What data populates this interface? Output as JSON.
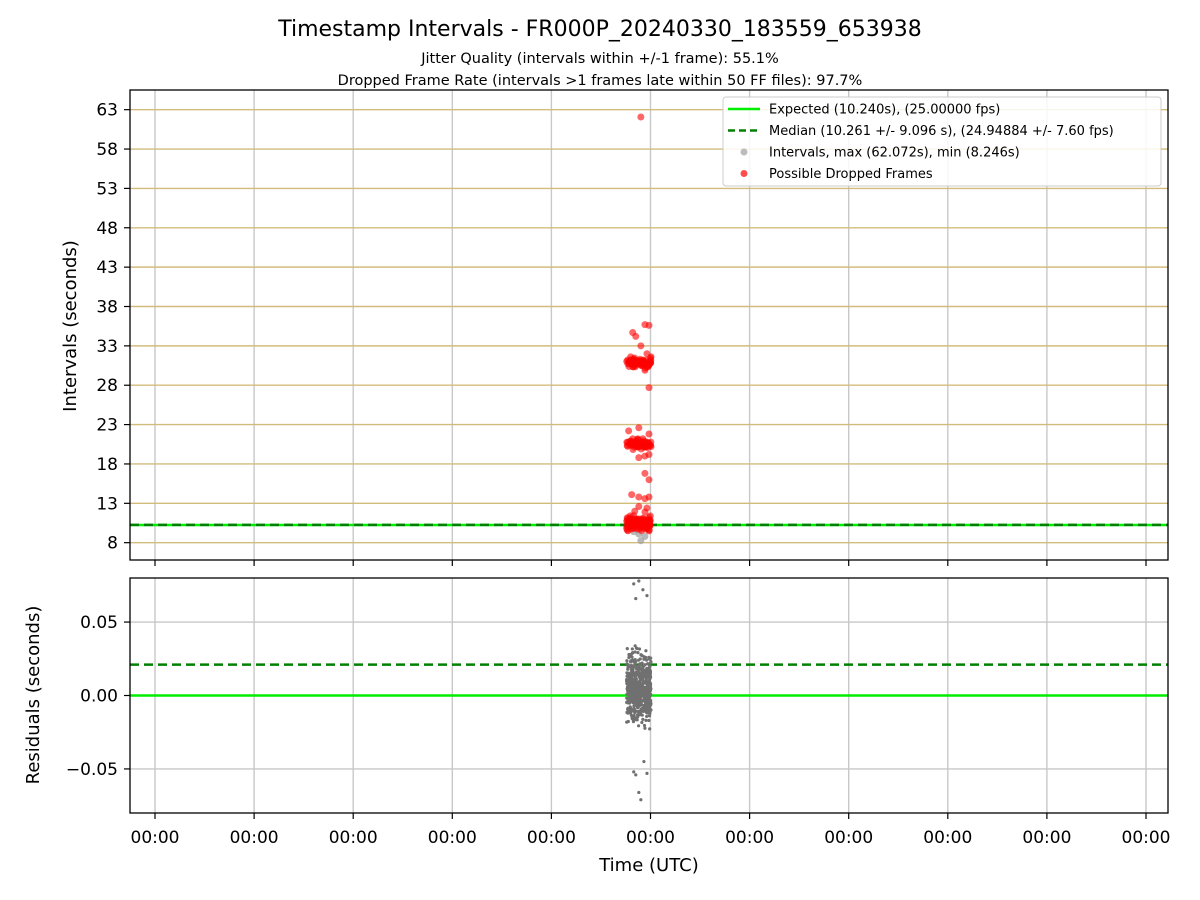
{
  "title": "Timestamp Intervals - FR000P_20240330_183559_653938",
  "subtitle_lines": [
    "Jitter Quality (intervals within +/-1 frame): 55.1%",
    "Dropped Frame Rate (intervals >1 frames late within 50 FF files): 97.7%"
  ],
  "colors": {
    "expected": "#00ee00",
    "median": "#008000",
    "interval_points": "#a0a0a0",
    "dropped_points": "#ff0000",
    "residual_points": "#707070",
    "top_hgrid": "#d2bc7c",
    "grid": "#c8c8c8"
  },
  "chart_data": [
    {
      "type": "scatter",
      "panel": "top",
      "ylabel": "Intervals (seconds)",
      "xlabel": "",
      "ylim": [
        5.8,
        65.5
      ],
      "yticks": [
        8,
        13,
        18,
        23,
        28,
        33,
        38,
        43,
        48,
        53,
        58,
        63
      ],
      "x_tick_labels": [
        "00:00",
        "00:00",
        "00:00",
        "00:00",
        "00:00",
        "00:00",
        "00:00",
        "00:00",
        "00:00",
        "00:00",
        "00:00"
      ],
      "x_tick_labels_visible": false,
      "grid": true,
      "legend_placement": "top-right",
      "legend": [
        {
          "label": "Expected (10.240s), (25.00000 fps)",
          "kind": "solid-line",
          "color_key": "expected"
        },
        {
          "label": "Median (10.261 +/- 9.096 s), (24.94884 +/- 7.60 fps)",
          "kind": "dashed-line",
          "color_key": "median"
        },
        {
          "label": "Intervals, max (62.072s), min (8.246s)",
          "kind": "dot",
          "color_key": "interval_points"
        },
        {
          "label": "Possible Dropped Frames",
          "kind": "dot",
          "color_key": "dropped_points"
        }
      ],
      "expected": 10.24,
      "median": 10.261,
      "max_interval": 62.072,
      "min_interval": 8.246,
      "x_center": 5,
      "xlim": [
        0,
        10.2
      ],
      "series": [
        {
          "name": "Intervals, max (62.072s), min (8.246s)",
          "points": [
            [
              5.0,
              9.1
            ],
            [
              5.02,
              8.25
            ],
            [
              5.06,
              8.8
            ],
            [
              4.95,
              9.4
            ],
            [
              5.08,
              9.7
            ],
            [
              4.96,
              9.9
            ]
          ]
        },
        {
          "name": "Possible Dropped Frames",
          "points": [
            [
              5.02,
              62.07
            ],
            [
              5.06,
              35.7
            ],
            [
              5.1,
              35.6
            ],
            [
              4.94,
              34.7
            ],
            [
              4.97,
              34.2
            ],
            [
              5.02,
              33.0
            ],
            [
              5.08,
              32.0
            ],
            [
              5.12,
              31.6
            ],
            [
              4.92,
              31.6
            ],
            [
              5.04,
              31.2
            ],
            [
              5.1,
              27.7
            ],
            [
              5.06,
              29.9
            ],
            [
              4.98,
              31.0
            ],
            [
              5.1,
              30.8
            ],
            [
              4.9,
              22.2
            ],
            [
              5.0,
              22.6
            ],
            [
              5.1,
              21.8
            ],
            [
              4.94,
              21.2
            ],
            [
              5.04,
              21.2
            ],
            [
              5.06,
              19.0
            ],
            [
              5.1,
              19.2
            ],
            [
              5.0,
              18.8
            ],
            [
              5.06,
              16.8
            ],
            [
              5.1,
              16.0
            ],
            [
              4.93,
              14.1
            ],
            [
              5.0,
              13.8
            ],
            [
              5.06,
              13.6
            ],
            [
              5.1,
              13.8
            ],
            [
              5.0,
              12.6
            ],
            [
              5.08,
              12.4
            ],
            [
              4.96,
              12.0
            ],
            [
              5.06,
              11.9
            ]
          ],
          "clusters": [
            {
              "center": 30.8,
              "spread": 0.4,
              "x_from": 4.88,
              "x_to": 5.12,
              "count": 70
            },
            {
              "center": 20.5,
              "spread": 0.4,
              "x_from": 4.88,
              "x_to": 5.12,
              "count": 60
            },
            {
              "center": 10.5,
              "spread": 0.6,
              "x_from": 4.88,
              "x_to": 5.12,
              "count": 110
            }
          ]
        }
      ]
    },
    {
      "type": "scatter",
      "panel": "bottom",
      "xlabel": "Time (UTC)",
      "ylabel": "Residuals (seconds)",
      "ylim": [
        -0.08,
        0.08
      ],
      "yticks": [
        -0.05,
        0.0,
        0.05
      ],
      "ytick_labels": [
        "−0.05",
        "0.00",
        "0.05"
      ],
      "x_tick_labels": [
        "00:00",
        "00:00",
        "00:00",
        "00:00",
        "00:00",
        "00:00",
        "00:00",
        "00:00",
        "00:00",
        "00:00",
        "00:00"
      ],
      "grid": true,
      "expected_residual": 0.0,
      "median_residual": 0.021,
      "x_center": 5,
      "xlim": [
        0,
        10.2
      ],
      "series": [
        {
          "name": "",
          "points": [
            [
              5.02,
              -0.071
            ],
            [
              5.0,
              -0.066
            ],
            [
              4.95,
              -0.052
            ],
            [
              4.97,
              -0.054
            ],
            [
              5.08,
              -0.053
            ],
            [
              5.05,
              -0.045
            ],
            [
              5.0,
              0.078
            ],
            [
              4.95,
              0.076
            ],
            [
              5.04,
              0.072
            ],
            [
              5.08,
              0.068
            ],
            [
              4.97,
              0.066
            ]
          ],
          "cluster": {
            "center": 0.005,
            "spread": 0.015,
            "x_from": 4.88,
            "x_to": 5.12,
            "count": 600
          }
        }
      ]
    }
  ]
}
